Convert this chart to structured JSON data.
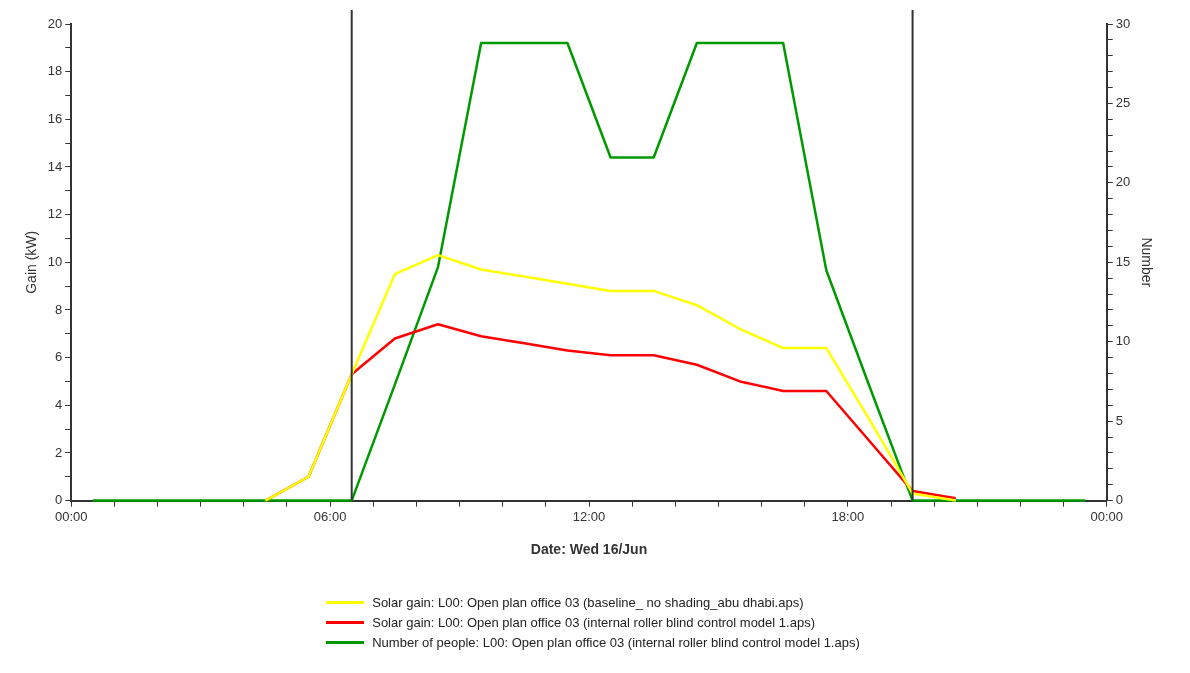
{
  "chart_data": {
    "type": "line",
    "xlabel": "Date: Wed 16/Jun",
    "ylabel": "Gain (kW)",
    "y2label": "Number",
    "x": [
      0.5,
      1.5,
      2.5,
      3.5,
      4.5,
      5.5,
      6.5,
      7.5,
      8.5,
      9.5,
      10.5,
      11.5,
      12.5,
      13.5,
      14.5,
      15.5,
      16.5,
      17.5,
      18.5,
      19.5,
      20.5,
      21.5,
      22.5,
      23.5
    ],
    "series": [
      {
        "name": "Solar gain: L00: Open plan office 03 (baseline_ no shading_abu dhabi.aps)",
        "color": "#ffff00",
        "values": [
          null,
          null,
          null,
          null,
          0,
          1.0,
          5.3,
          9.5,
          10.3,
          9.7,
          9.4,
          9.1,
          8.8,
          8.8,
          8.2,
          7.2,
          6.4,
          6.4,
          3.4,
          0.3,
          0,
          null,
          null,
          null
        ]
      },
      {
        "name": "Solar gain: L00: Open plan office 03 (internal roller blind control model 1.aps)",
        "color": "#ff0000",
        "values": [
          null,
          null,
          null,
          null,
          0,
          1.0,
          5.3,
          6.8,
          7.4,
          6.9,
          6.6,
          6.3,
          6.1,
          6.1,
          5.7,
          5.0,
          4.6,
          4.6,
          2.5,
          0.4,
          0.1,
          null,
          null,
          null
        ]
      },
      {
        "name": "Number of people: L00: Open plan office 03 (internal roller blind control model 1.aps)",
        "color": "#009900",
        "axis": "y2",
        "values": [
          0,
          0,
          0,
          0,
          0,
          0,
          0,
          7.3,
          14.7,
          28.8,
          28.8,
          28.8,
          21.6,
          21.6,
          28.8,
          28.8,
          28.8,
          14.5,
          7.2,
          0,
          0,
          0,
          0,
          0
        ]
      }
    ],
    "xlim": [
      0,
      24
    ],
    "xticks": [
      {
        "value": 0,
        "label": "00:00"
      },
      {
        "value": 1,
        "label": null
      },
      {
        "value": 2,
        "label": null
      },
      {
        "value": 3,
        "label": null
      },
      {
        "value": 4,
        "label": null
      },
      {
        "value": 5,
        "label": null
      },
      {
        "value": 6,
        "label": "06:00"
      },
      {
        "value": 7,
        "label": null
      },
      {
        "value": 8,
        "label": null
      },
      {
        "value": 9,
        "label": null
      },
      {
        "value": 10,
        "label": null
      },
      {
        "value": 11,
        "label": null
      },
      {
        "value": 12,
        "label": "12:00"
      },
      {
        "value": 13,
        "label": null
      },
      {
        "value": 14,
        "label": null
      },
      {
        "value": 15,
        "label": null
      },
      {
        "value": 16,
        "label": null
      },
      {
        "value": 17,
        "label": null
      },
      {
        "value": 18,
        "label": "18:00"
      },
      {
        "value": 19,
        "label": null
      },
      {
        "value": 20,
        "label": null
      },
      {
        "value": 21,
        "label": null
      },
      {
        "value": 22,
        "label": null
      },
      {
        "value": 23,
        "label": null
      },
      {
        "value": 24,
        "label": "00:00"
      }
    ],
    "ylim": [
      0,
      20
    ],
    "yticks": [
      0,
      {
        "value": 1,
        "label": null
      },
      2,
      {
        "value": 3,
        "label": null
      },
      4,
      {
        "value": 5,
        "label": null
      },
      6,
      {
        "value": 7,
        "label": null
      },
      8,
      {
        "value": 9,
        "label": null
      },
      10,
      {
        "value": 11,
        "label": null
      },
      12,
      {
        "value": 13,
        "label": null
      },
      14,
      {
        "value": 15,
        "label": null
      },
      16,
      {
        "value": 17,
        "label": null
      },
      18,
      {
        "value": 19,
        "label": null
      },
      20
    ],
    "y2lim": [
      0,
      30
    ],
    "y2ticks": [
      0,
      {
        "value": 1,
        "label": null
      },
      {
        "value": 2,
        "label": null
      },
      {
        "value": 3,
        "label": null
      },
      {
        "value": 4,
        "label": null
      },
      5,
      {
        "value": 6,
        "label": null
      },
      {
        "value": 7,
        "label": null
      },
      {
        "value": 8,
        "label": null
      },
      {
        "value": 9,
        "label": null
      },
      10,
      {
        "value": 11,
        "label": null
      },
      {
        "value": 12,
        "label": null
      },
      {
        "value": 13,
        "label": null
      },
      {
        "value": 14,
        "label": null
      },
      15,
      {
        "value": 16,
        "label": null
      },
      {
        "value": 17,
        "label": null
      },
      {
        "value": 18,
        "label": null
      },
      {
        "value": 19,
        "label": null
      },
      20,
      {
        "value": 21,
        "label": null
      },
      {
        "value": 22,
        "label": null
      },
      {
        "value": 23,
        "label": null
      },
      {
        "value": 24,
        "label": null
      },
      25,
      {
        "value": 26,
        "label": null
      },
      {
        "value": 27,
        "label": null
      },
      {
        "value": 28,
        "label": null
      },
      {
        "value": 29,
        "label": null
      },
      30
    ],
    "ref_lines": [
      {
        "axis": "x",
        "value": 6.5,
        "color": "#333333"
      },
      {
        "axis": "x",
        "value": 19.5,
        "color": "#333333"
      }
    ],
    "grid": false,
    "legend": "bottom",
    "marker": "none",
    "line_style": "solid"
  }
}
